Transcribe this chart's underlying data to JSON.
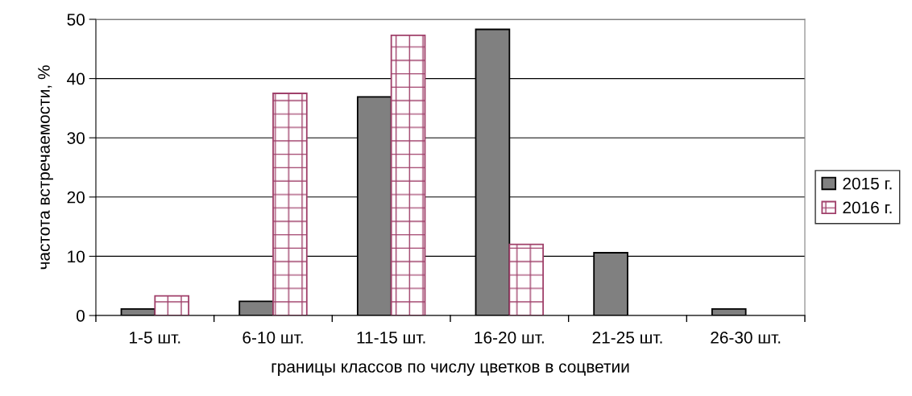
{
  "chart_data": {
    "type": "bar",
    "xlabel": "границы классов по числу цветков в соцветии",
    "ylabel": "частота встречаемости, %",
    "categories": [
      "1-5 шт.",
      "6-10 шт.",
      "11-15 шт.",
      "16-20 шт.",
      "21-25 шт.",
      "26-30 шт."
    ],
    "series": [
      {
        "name": "2015 г.",
        "color": "#808080",
        "values": [
          1.1,
          2.4,
          36.9,
          48.3,
          10.6,
          1.1
        ]
      },
      {
        "name": "2016 г.",
        "color": "#a0406a",
        "values": [
          3.3,
          37.5,
          47.3,
          12.0,
          null,
          null
        ]
      }
    ],
    "ylim": [
      0,
      50
    ],
    "yticks": [
      0,
      10,
      20,
      30,
      40,
      50
    ],
    "grid": "y",
    "legend": "right"
  }
}
